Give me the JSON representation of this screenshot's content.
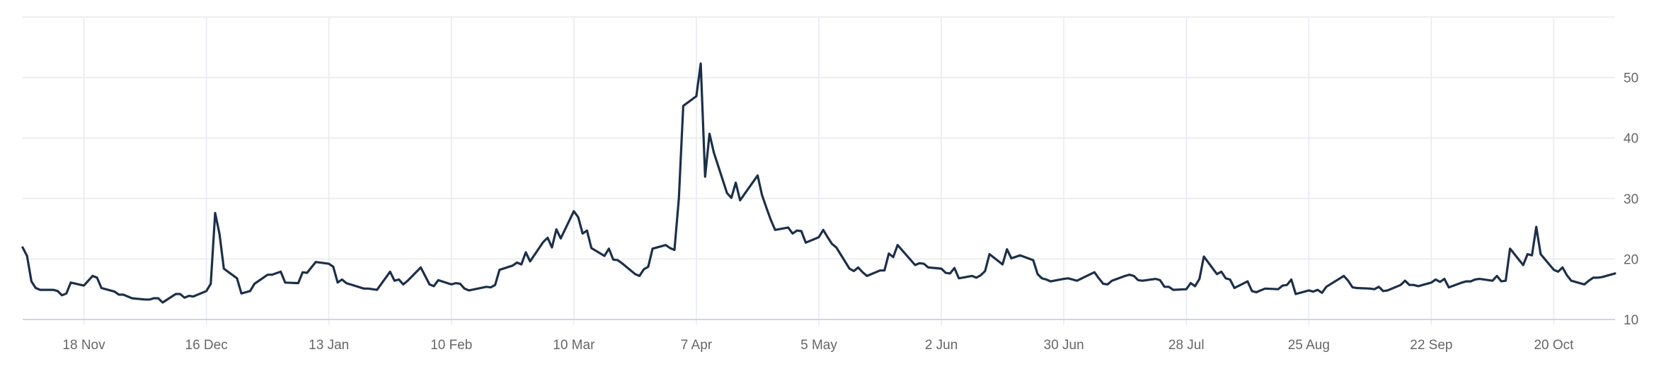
{
  "chart_data": {
    "type": "line",
    "title": "",
    "xlabel": "",
    "ylabel": "",
    "xlim": [
      "2024-11-04",
      "2025-11-03"
    ],
    "ylim": [
      10,
      60
    ],
    "y_ticks": [
      10,
      20,
      30,
      40,
      50
    ],
    "y_tick_labels": [
      "10",
      "20",
      "30",
      "40",
      "50"
    ],
    "y_axis_side": "right",
    "x_ticks": [
      "2024-11-18",
      "2024-12-16",
      "2025-01-13",
      "2025-02-10",
      "2025-03-10",
      "2025-04-07",
      "2025-05-05",
      "2025-06-02",
      "2025-06-30",
      "2025-07-28",
      "2025-08-25",
      "2025-09-22",
      "2025-10-20"
    ],
    "x_tick_labels": [
      "18 Nov",
      "16 Dec",
      "13 Jan",
      "10 Feb",
      "10 Mar",
      "7 Apr",
      "5 May",
      "2 Jun",
      "30 Jun",
      "28 Jul",
      "25 Aug",
      "22 Sep",
      "20 Oct"
    ],
    "grid": true,
    "legend": "none",
    "line_color": "#1c2f4a",
    "points": [
      [
        "2024-11-04",
        21.9
      ],
      [
        "2024-11-05",
        20.5
      ],
      [
        "2024-11-06",
        16.3
      ],
      [
        "2024-11-07",
        15.2
      ],
      [
        "2024-11-08",
        14.9
      ],
      [
        "2024-11-11",
        14.9
      ],
      [
        "2024-11-12",
        14.7
      ],
      [
        "2024-11-13",
        14.0
      ],
      [
        "2024-11-14",
        14.3
      ],
      [
        "2024-11-15",
        16.1
      ],
      [
        "2024-11-18",
        15.6
      ],
      [
        "2024-11-19",
        16.4
      ],
      [
        "2024-11-20",
        17.2
      ],
      [
        "2024-11-21",
        16.9
      ],
      [
        "2024-11-22",
        15.2
      ],
      [
        "2024-11-25",
        14.6
      ],
      [
        "2024-11-26",
        14.1
      ],
      [
        "2024-11-27",
        14.1
      ],
      [
        "2024-11-29",
        13.5
      ],
      [
        "2024-12-02",
        13.3
      ],
      [
        "2024-12-03",
        13.3
      ],
      [
        "2024-12-04",
        13.5
      ],
      [
        "2024-12-05",
        13.5
      ],
      [
        "2024-12-06",
        12.8
      ],
      [
        "2024-12-09",
        14.2
      ],
      [
        "2024-12-10",
        14.2
      ],
      [
        "2024-12-11",
        13.6
      ],
      [
        "2024-12-12",
        13.9
      ],
      [
        "2024-12-13",
        13.8
      ],
      [
        "2024-12-16",
        14.7
      ],
      [
        "2024-12-17",
        15.9
      ],
      [
        "2024-12-18",
        27.6
      ],
      [
        "2024-12-19",
        24.1
      ],
      [
        "2024-12-20",
        18.4
      ],
      [
        "2024-12-23",
        16.8
      ],
      [
        "2024-12-24",
        14.3
      ],
      [
        "2024-12-26",
        14.7
      ],
      [
        "2024-12-27",
        15.9
      ],
      [
        "2024-12-30",
        17.4
      ],
      [
        "2024-12-31",
        17.4
      ],
      [
        "2025-01-02",
        17.9
      ],
      [
        "2025-01-03",
        16.1
      ],
      [
        "2025-01-06",
        16.0
      ],
      [
        "2025-01-07",
        17.8
      ],
      [
        "2025-01-08",
        17.7
      ],
      [
        "2025-01-10",
        19.5
      ],
      [
        "2025-01-13",
        19.2
      ],
      [
        "2025-01-14",
        18.7
      ],
      [
        "2025-01-15",
        16.1
      ],
      [
        "2025-01-16",
        16.6
      ],
      [
        "2025-01-17",
        16.0
      ],
      [
        "2025-01-21",
        15.1
      ],
      [
        "2025-01-22",
        15.1
      ],
      [
        "2025-01-23",
        15.0
      ],
      [
        "2025-01-24",
        14.9
      ],
      [
        "2025-01-27",
        17.9
      ],
      [
        "2025-01-28",
        16.4
      ],
      [
        "2025-01-29",
        16.6
      ],
      [
        "2025-01-30",
        15.8
      ],
      [
        "2025-01-31",
        16.4
      ],
      [
        "2025-02-03",
        18.6
      ],
      [
        "2025-02-04",
        17.2
      ],
      [
        "2025-02-05",
        15.8
      ],
      [
        "2025-02-06",
        15.5
      ],
      [
        "2025-02-07",
        16.5
      ],
      [
        "2025-02-10",
        15.8
      ],
      [
        "2025-02-11",
        16.0
      ],
      [
        "2025-02-12",
        15.9
      ],
      [
        "2025-02-13",
        15.1
      ],
      [
        "2025-02-14",
        14.8
      ],
      [
        "2025-02-18",
        15.4
      ],
      [
        "2025-02-19",
        15.3
      ],
      [
        "2025-02-20",
        15.7
      ],
      [
        "2025-02-21",
        18.2
      ],
      [
        "2025-02-24",
        18.9
      ],
      [
        "2025-02-25",
        19.4
      ],
      [
        "2025-02-26",
        19.1
      ],
      [
        "2025-02-27",
        21.1
      ],
      [
        "2025-02-28",
        19.6
      ],
      [
        "2025-03-03",
        22.8
      ],
      [
        "2025-03-04",
        23.5
      ],
      [
        "2025-03-05",
        21.9
      ],
      [
        "2025-03-06",
        24.9
      ],
      [
        "2025-03-07",
        23.4
      ],
      [
        "2025-03-10",
        27.9
      ],
      [
        "2025-03-11",
        26.9
      ],
      [
        "2025-03-12",
        24.2
      ],
      [
        "2025-03-13",
        24.7
      ],
      [
        "2025-03-14",
        21.8
      ],
      [
        "2025-03-17",
        20.5
      ],
      [
        "2025-03-18",
        21.7
      ],
      [
        "2025-03-19",
        19.9
      ],
      [
        "2025-03-20",
        19.8
      ],
      [
        "2025-03-21",
        19.3
      ],
      [
        "2025-03-24",
        17.5
      ],
      [
        "2025-03-25",
        17.2
      ],
      [
        "2025-03-26",
        18.3
      ],
      [
        "2025-03-27",
        18.7
      ],
      [
        "2025-03-28",
        21.7
      ],
      [
        "2025-03-31",
        22.3
      ],
      [
        "2025-04-01",
        21.8
      ],
      [
        "2025-04-02",
        21.5
      ],
      [
        "2025-04-03",
        30.0
      ],
      [
        "2025-04-04",
        45.3
      ],
      [
        "2025-04-07",
        46.9
      ],
      [
        "2025-04-08",
        52.3
      ],
      [
        "2025-04-09",
        33.6
      ],
      [
        "2025-04-10",
        40.7
      ],
      [
        "2025-04-11",
        37.6
      ],
      [
        "2025-04-14",
        30.9
      ],
      [
        "2025-04-15",
        30.1
      ],
      [
        "2025-04-16",
        32.6
      ],
      [
        "2025-04-17",
        29.7
      ],
      [
        "2025-04-21",
        33.8
      ],
      [
        "2025-04-22",
        30.6
      ],
      [
        "2025-04-23",
        28.5
      ],
      [
        "2025-04-24",
        26.5
      ],
      [
        "2025-04-25",
        24.8
      ],
      [
        "2025-04-28",
        25.2
      ],
      [
        "2025-04-29",
        24.2
      ],
      [
        "2025-04-30",
        24.7
      ],
      [
        "2025-05-01",
        24.6
      ],
      [
        "2025-05-02",
        22.7
      ],
      [
        "2025-05-05",
        23.6
      ],
      [
        "2025-05-06",
        24.8
      ],
      [
        "2025-05-07",
        23.6
      ],
      [
        "2025-05-08",
        22.5
      ],
      [
        "2025-05-09",
        21.9
      ],
      [
        "2025-05-12",
        18.4
      ],
      [
        "2025-05-13",
        18.0
      ],
      [
        "2025-05-14",
        18.6
      ],
      [
        "2025-05-15",
        17.8
      ],
      [
        "2025-05-16",
        17.2
      ],
      [
        "2025-05-19",
        18.1
      ],
      [
        "2025-05-20",
        18.1
      ],
      [
        "2025-05-21",
        20.9
      ],
      [
        "2025-05-22",
        20.3
      ],
      [
        "2025-05-23",
        22.3
      ],
      [
        "2025-05-27",
        19.0
      ],
      [
        "2025-05-28",
        19.3
      ],
      [
        "2025-05-29",
        19.2
      ],
      [
        "2025-05-30",
        18.6
      ],
      [
        "2025-06-02",
        18.4
      ],
      [
        "2025-06-03",
        17.7
      ],
      [
        "2025-06-04",
        17.6
      ],
      [
        "2025-06-05",
        18.5
      ],
      [
        "2025-06-06",
        16.8
      ],
      [
        "2025-06-09",
        17.2
      ],
      [
        "2025-06-10",
        16.9
      ],
      [
        "2025-06-11",
        17.3
      ],
      [
        "2025-06-12",
        18.0
      ],
      [
        "2025-06-13",
        20.8
      ],
      [
        "2025-06-16",
        19.1
      ],
      [
        "2025-06-17",
        21.6
      ],
      [
        "2025-06-18",
        20.1
      ],
      [
        "2025-06-20",
        20.6
      ],
      [
        "2025-06-23",
        19.8
      ],
      [
        "2025-06-24",
        17.5
      ],
      [
        "2025-06-25",
        16.8
      ],
      [
        "2025-06-26",
        16.6
      ],
      [
        "2025-06-27",
        16.3
      ],
      [
        "2025-06-30",
        16.7
      ],
      [
        "2025-07-01",
        16.8
      ],
      [
        "2025-07-02",
        16.6
      ],
      [
        "2025-07-03",
        16.4
      ],
      [
        "2025-07-07",
        17.8
      ],
      [
        "2025-07-08",
        16.8
      ],
      [
        "2025-07-09",
        15.9
      ],
      [
        "2025-07-10",
        15.8
      ],
      [
        "2025-07-11",
        16.4
      ],
      [
        "2025-07-14",
        17.2
      ],
      [
        "2025-07-15",
        17.4
      ],
      [
        "2025-07-16",
        17.2
      ],
      [
        "2025-07-17",
        16.5
      ],
      [
        "2025-07-18",
        16.4
      ],
      [
        "2025-07-21",
        16.7
      ],
      [
        "2025-07-22",
        16.5
      ],
      [
        "2025-07-23",
        15.4
      ],
      [
        "2025-07-24",
        15.4
      ],
      [
        "2025-07-25",
        14.9
      ],
      [
        "2025-07-28",
        15.0
      ],
      [
        "2025-07-29",
        16.0
      ],
      [
        "2025-07-30",
        15.5
      ],
      [
        "2025-07-31",
        16.7
      ],
      [
        "2025-08-01",
        20.4
      ],
      [
        "2025-08-04",
        17.5
      ],
      [
        "2025-08-05",
        17.9
      ],
      [
        "2025-08-06",
        16.8
      ],
      [
        "2025-08-07",
        16.6
      ],
      [
        "2025-08-08",
        15.2
      ],
      [
        "2025-08-11",
        16.3
      ],
      [
        "2025-08-12",
        14.7
      ],
      [
        "2025-08-13",
        14.5
      ],
      [
        "2025-08-14",
        14.8
      ],
      [
        "2025-08-15",
        15.1
      ],
      [
        "2025-08-18",
        15.0
      ],
      [
        "2025-08-19",
        15.6
      ],
      [
        "2025-08-20",
        15.7
      ],
      [
        "2025-08-21",
        16.6
      ],
      [
        "2025-08-22",
        14.2
      ],
      [
        "2025-08-25",
        14.8
      ],
      [
        "2025-08-26",
        14.6
      ],
      [
        "2025-08-27",
        14.9
      ],
      [
        "2025-08-28",
        14.4
      ],
      [
        "2025-08-29",
        15.4
      ],
      [
        "2025-09-02",
        17.2
      ],
      [
        "2025-09-03",
        16.4
      ],
      [
        "2025-09-04",
        15.3
      ],
      [
        "2025-09-05",
        15.2
      ],
      [
        "2025-09-08",
        15.1
      ],
      [
        "2025-09-09",
        15.0
      ],
      [
        "2025-09-10",
        15.4
      ],
      [
        "2025-09-11",
        14.7
      ],
      [
        "2025-09-12",
        14.8
      ],
      [
        "2025-09-15",
        15.7
      ],
      [
        "2025-09-16",
        16.4
      ],
      [
        "2025-09-17",
        15.7
      ],
      [
        "2025-09-18",
        15.7
      ],
      [
        "2025-09-19",
        15.5
      ],
      [
        "2025-09-22",
        16.1
      ],
      [
        "2025-09-23",
        16.6
      ],
      [
        "2025-09-24",
        16.2
      ],
      [
        "2025-09-25",
        16.7
      ],
      [
        "2025-09-26",
        15.3
      ],
      [
        "2025-09-29",
        16.1
      ],
      [
        "2025-09-30",
        16.3
      ],
      [
        "2025-10-01",
        16.3
      ],
      [
        "2025-10-02",
        16.6
      ],
      [
        "2025-10-03",
        16.7
      ],
      [
        "2025-10-06",
        16.4
      ],
      [
        "2025-10-07",
        17.2
      ],
      [
        "2025-10-08",
        16.3
      ],
      [
        "2025-10-09",
        16.4
      ],
      [
        "2025-10-10",
        21.7
      ],
      [
        "2025-10-13",
        19.0
      ],
      [
        "2025-10-14",
        20.8
      ],
      [
        "2025-10-15",
        20.6
      ],
      [
        "2025-10-16",
        25.3
      ],
      [
        "2025-10-17",
        20.8
      ],
      [
        "2025-10-20",
        18.2
      ],
      [
        "2025-10-21",
        17.9
      ],
      [
        "2025-10-22",
        18.6
      ],
      [
        "2025-10-23",
        17.3
      ],
      [
        "2025-10-24",
        16.4
      ],
      [
        "2025-10-27",
        15.8
      ],
      [
        "2025-10-28",
        16.4
      ],
      [
        "2025-10-29",
        16.9
      ],
      [
        "2025-10-30",
        16.9
      ],
      [
        "2025-10-31",
        17.0
      ],
      [
        "2025-11-03",
        17.6
      ]
    ]
  }
}
